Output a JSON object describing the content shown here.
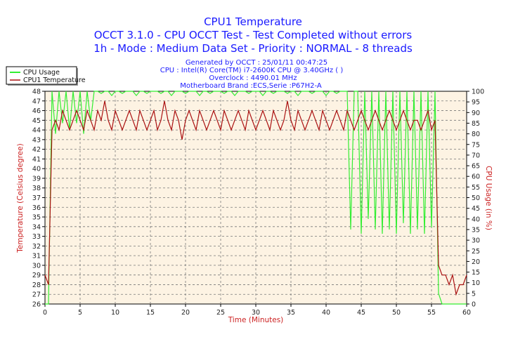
{
  "chart_data": {
    "type": "line",
    "title": "CPU1 Temperature",
    "subtitle_lines": [
      "OCCT 3.1.0 - CPU OCCT Test - Test Completed without errors",
      "1h - Mode : Medium Data Set - Priority : NORMAL - 8 threads"
    ],
    "info_lines": [
      "Generated by OCCT : 25/01/11 00:47:25",
      "CPU : Intel(R) Core(TM) i7-2600K CPU @ 3.40GHz (  )",
      "Overclock : 4490.01 MHz",
      "Motherboard Brand :ECS,Serie :P67H2-A"
    ],
    "xlabel": "Time (Minutes)",
    "ylabel": "Temperature (Celsius degree)",
    "y2label": "CPU Usage (in %)",
    "xlim": [
      0,
      60
    ],
    "ylim": [
      26,
      48
    ],
    "y2lim": [
      0,
      100
    ],
    "xticks": [
      0,
      5,
      10,
      15,
      20,
      25,
      30,
      35,
      40,
      45,
      50,
      55,
      60
    ],
    "yticks": [
      26,
      27,
      28,
      29,
      30,
      31,
      32,
      33,
      34,
      35,
      36,
      37,
      38,
      39,
      40,
      41,
      42,
      43,
      44,
      45,
      46,
      47,
      48
    ],
    "y2ticks": [
      0,
      5,
      10,
      15,
      20,
      25,
      30,
      35,
      40,
      45,
      50,
      55,
      60,
      65,
      70,
      75,
      80,
      85,
      90,
      95,
      100
    ],
    "grid": true,
    "legend_placement": "top-left",
    "series": [
      {
        "name": "CPU Usage",
        "axis": "right",
        "color": "#33ee33",
        "values": [
          0,
          0,
          100,
          80,
          100,
          85,
          100,
          82,
          100,
          85,
          100,
          80,
          100,
          86,
          100,
          100,
          99,
          100,
          100,
          98,
          100,
          100,
          99,
          100,
          100,
          100,
          98,
          100,
          100,
          99,
          100,
          100,
          100,
          99,
          100,
          100,
          98,
          100,
          100,
          100,
          99,
          100,
          100,
          100,
          98,
          100,
          100,
          99,
          100,
          100,
          100,
          99,
          100,
          100,
          98,
          100,
          100,
          100,
          99,
          100,
          100,
          100,
          98,
          100,
          100,
          99,
          100,
          100,
          100,
          99,
          100,
          100,
          98,
          100,
          100,
          100,
          99,
          100,
          100,
          100,
          98,
          100,
          100,
          99,
          100,
          100,
          100,
          35,
          100,
          100,
          33,
          100,
          40,
          100,
          35,
          100,
          33,
          100,
          35,
          100,
          33,
          100,
          38,
          100,
          33,
          100,
          35,
          100,
          33,
          100,
          36,
          100,
          5,
          0,
          0,
          0,
          0,
          0,
          0,
          0,
          0
        ]
      },
      {
        "name": "CPU1 Temperature",
        "axis": "left",
        "color": "#aa1111",
        "values": [
          29,
          28,
          44,
          45,
          44,
          46,
          45,
          44,
          45,
          46,
          45,
          44,
          46,
          45,
          44,
          46,
          45,
          47,
          45,
          44,
          46,
          45,
          44,
          45,
          46,
          45,
          44,
          46,
          45,
          44,
          45,
          46,
          44,
          45,
          47,
          45,
          44,
          46,
          45,
          43,
          45,
          46,
          45,
          44,
          46,
          45,
          44,
          45,
          46,
          45,
          44,
          46,
          45,
          44,
          45,
          46,
          45,
          44,
          46,
          45,
          44,
          45,
          46,
          45,
          44,
          46,
          45,
          44,
          45,
          47,
          45,
          44,
          46,
          45,
          44,
          45,
          46,
          45,
          44,
          46,
          45,
          44,
          45,
          46,
          45,
          44,
          46,
          45,
          44,
          45,
          46,
          45,
          44,
          45,
          46,
          45,
          44,
          45,
          46,
          45,
          44,
          45,
          46,
          45,
          44,
          45,
          45,
          44,
          45,
          46,
          44,
          45,
          30,
          29,
          29,
          28,
          29,
          27,
          28,
          28,
          29
        ]
      }
    ]
  }
}
